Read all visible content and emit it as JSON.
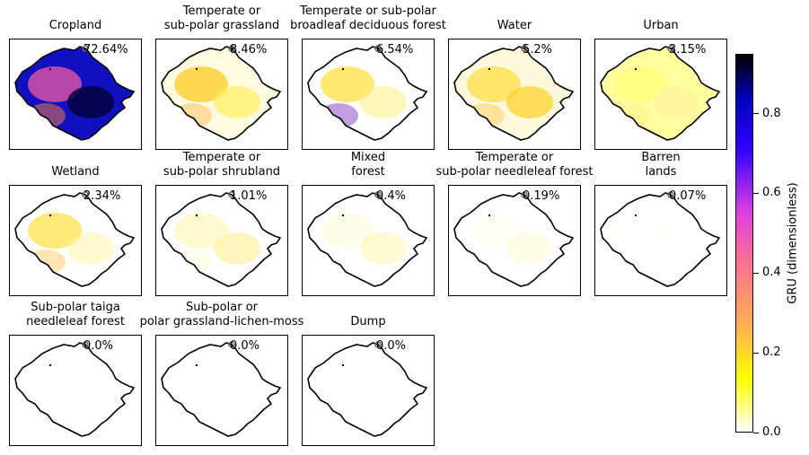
{
  "chart_data": {
    "type": "heatmap",
    "description_units": "share of class within region (%)",
    "panels": [
      {
        "title": "Cropland",
        "value_label": "72.64%",
        "value": 72.64
      },
      {
        "title": "Temperate or\nsub-polar grassland",
        "value_label": "8.46%",
        "value": 8.46
      },
      {
        "title": "Temperate or sub-polar\nbroadleaf deciduous forest",
        "value_label": "6.54%",
        "value": 6.54
      },
      {
        "title": "Water",
        "value_label": "5.2%",
        "value": 5.2
      },
      {
        "title": "Urban",
        "value_label": "3.15%",
        "value": 3.15
      },
      {
        "title": "Wetland",
        "value_label": "2.34%",
        "value": 2.34
      },
      {
        "title": "Temperate or\nsub-polar shrubland",
        "value_label": "1.01%",
        "value": 1.01
      },
      {
        "title": "Mixed\nforest",
        "value_label": "0.4%",
        "value": 0.4
      },
      {
        "title": "Temperate or\nsub-polar needleleaf forest",
        "value_label": "0.19%",
        "value": 0.19
      },
      {
        "title": "Barren\nlands",
        "value_label": "0.07%",
        "value": 0.07
      },
      {
        "title": "Sub-polar taiga\nneedleleaf forest",
        "value_label": "0.0%",
        "value": 0.0
      },
      {
        "title": "Sub-polar or\npolar grassland-lichen-moss",
        "value_label": "0.0%",
        "value": 0.0
      },
      {
        "title": "Dump",
        "value_label": "0.0%",
        "value": 0.0
      }
    ],
    "colorbar": {
      "label": "GRU (dimensionless)",
      "ticks": [
        0.0,
        0.2,
        0.4,
        0.6,
        0.8
      ],
      "tick_labels": [
        "0.0",
        "0.2",
        "0.4",
        "0.6",
        "0.8"
      ],
      "range": [
        0.0,
        0.95
      ],
      "colormap": "gnuplot2_r"
    }
  }
}
